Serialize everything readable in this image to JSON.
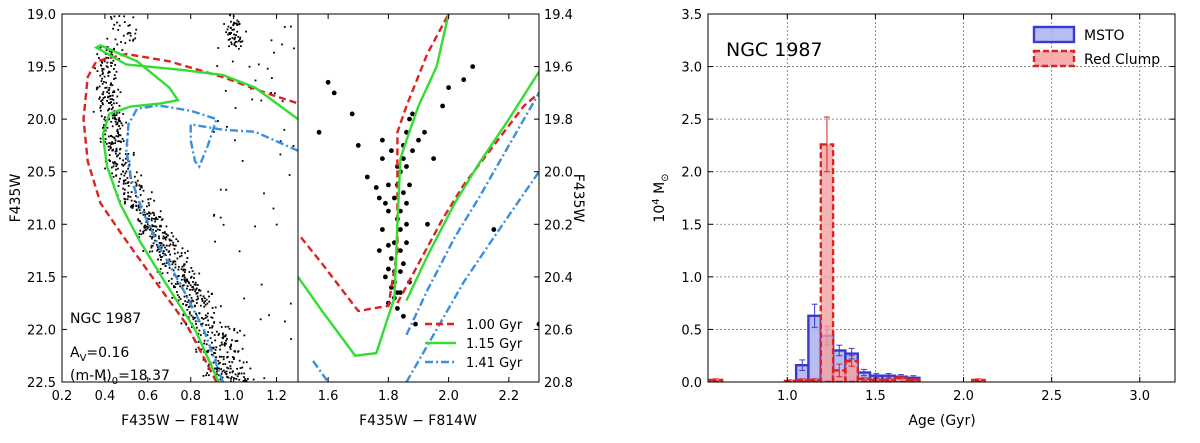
{
  "chart_data": [
    {
      "type": "scatter",
      "panel": "left CMD",
      "xlabel": "F435W − F814W",
      "ylabel": "F435W",
      "xlim": [
        0.2,
        1.3
      ],
      "ylim": [
        22.5,
        19.0
      ],
      "xticks": [
        0.2,
        0.4,
        0.6,
        0.8,
        1.0,
        1.2
      ],
      "xtick_labels": [
        "0.2",
        "0.4",
        "0.6",
        "0.8",
        "1.0",
        "1.2"
      ],
      "yticks": [
        19.0,
        19.5,
        20.0,
        20.5,
        21.0,
        21.5,
        22.0,
        22.5
      ],
      "ytick_labels": [
        "19.0",
        "19.5",
        "20.0",
        "20.5",
        "21.0",
        "21.5",
        "22.0",
        "22.5"
      ],
      "annotations": [
        "NGC 1987",
        "A",
        "V",
        "=0.16",
        "(m-M)",
        "0",
        "=18.37"
      ],
      "isochrones": [
        {
          "age": "1.00 Gyr",
          "color": "#dd2222",
          "style": "dashed",
          "points": [
            [
              0.92,
              22.5
            ],
            [
              0.78,
              21.95
            ],
            [
              0.62,
              21.5
            ],
            [
              0.48,
              21.1
            ],
            [
              0.38,
              20.8
            ],
            [
              0.32,
              20.4
            ],
            [
              0.3,
              20.0
            ],
            [
              0.32,
              19.6
            ],
            [
              0.36,
              19.45
            ],
            [
              0.5,
              19.38
            ],
            [
              0.7,
              19.45
            ],
            [
              0.95,
              19.6
            ],
            [
              1.15,
              19.75
            ],
            [
              1.3,
              19.85
            ]
          ]
        },
        {
          "age": "1.15 Gyr",
          "color": "#33dd33",
          "style": "solid",
          "points": [
            [
              0.93,
              22.5
            ],
            [
              0.82,
              22.0
            ],
            [
              0.68,
              21.55
            ],
            [
              0.56,
              21.15
            ],
            [
              0.47,
              20.8
            ],
            [
              0.41,
              20.45
            ],
            [
              0.39,
              20.15
            ],
            [
              0.42,
              19.95
            ],
            [
              0.52,
              19.88
            ],
            [
              0.66,
              19.85
            ],
            [
              0.74,
              19.82
            ],
            [
              0.7,
              19.7
            ],
            [
              0.55,
              19.45
            ],
            [
              0.38,
              19.3
            ],
            [
              0.36,
              19.32
            ],
            [
              0.5,
              19.48
            ],
            [
              0.75,
              19.53
            ],
            [
              0.95,
              19.58
            ],
            [
              1.1,
              19.7
            ],
            [
              1.3,
              20.0
            ]
          ]
        },
        {
          "age": "1.41 Gyr",
          "color": "#3b8fdf",
          "style": "dashdot",
          "points": [
            [
              0.95,
              22.5
            ],
            [
              0.86,
              22.0
            ],
            [
              0.76,
              21.6
            ],
            [
              0.65,
              21.2
            ],
            [
              0.57,
              20.85
            ],
            [
              0.52,
              20.55
            ],
            [
              0.5,
              20.3
            ],
            [
              0.51,
              20.05
            ],
            [
              0.55,
              19.9
            ],
            [
              0.65,
              19.87
            ],
            [
              0.8,
              19.92
            ],
            [
              0.92,
              20.0
            ],
            [
              0.88,
              20.25
            ],
            [
              0.84,
              20.45
            ],
            [
              0.82,
              20.4
            ],
            [
              0.8,
              20.2
            ],
            [
              0.8,
              20.05
            ],
            [
              0.95,
              20.1
            ],
            [
              1.1,
              20.12
            ],
            [
              1.3,
              20.3
            ]
          ]
        }
      ],
      "stars": "upper main sequence, turnoff and red clump of NGC 1987"
    },
    {
      "type": "scatter",
      "panel": "zoom CMD",
      "xlabel": "F435W − F814W",
      "ylabel": "F435W",
      "xlim": [
        1.5,
        2.3
      ],
      "ylim": [
        20.8,
        19.4
      ],
      "xticks": [
        1.6,
        1.8,
        2.0,
        2.2
      ],
      "xtick_labels": [
        "1.6",
        "1.8",
        "2.0",
        "2.2"
      ],
      "yticks": [
        19.4,
        19.6,
        19.8,
        20.0,
        20.2,
        20.4,
        20.6,
        20.8
      ],
      "ytick_labels": [
        "19.4",
        "19.6",
        "19.8",
        "20.0",
        "20.2",
        "20.4",
        "20.6",
        "20.8"
      ],
      "legend": [
        "1.00 Gyr",
        "1.15 Gyr",
        "1.41 Gyr"
      ],
      "isochrones": [
        {
          "age": "1.00 Gyr",
          "color": "#dd2222",
          "style": "dashed",
          "points": [
            [
              1.51,
              20.25
            ],
            [
              1.58,
              20.35
            ],
            [
              1.7,
              20.53
            ],
            [
              1.8,
              20.51
            ],
            [
              1.83,
              20.3
            ],
            [
              1.83,
              19.85
            ],
            [
              1.86,
              19.75
            ],
            [
              1.93,
              19.55
            ],
            [
              2.0,
              19.4
            ]
          ],
          "points2": [
            [
              1.83,
              20.5
            ],
            [
              1.9,
              20.35
            ],
            [
              1.98,
              20.18
            ],
            [
              2.05,
              20.05
            ],
            [
              2.15,
              19.9
            ],
            [
              2.25,
              19.75
            ],
            [
              2.3,
              19.7
            ]
          ]
        },
        {
          "age": "1.15 Gyr",
          "color": "#33dd33",
          "style": "solid",
          "points": [
            [
              1.5,
              20.4
            ],
            [
              1.58,
              20.53
            ],
            [
              1.69,
              20.7
            ],
            [
              1.76,
              20.69
            ],
            [
              1.82,
              20.48
            ],
            [
              1.83,
              20.2
            ],
            [
              1.84,
              19.95
            ],
            [
              1.86,
              19.88
            ],
            [
              1.9,
              19.75
            ],
            [
              1.96,
              19.6
            ],
            [
              2.0,
              19.4
            ]
          ],
          "points2": [
            [
              1.86,
              20.49
            ],
            [
              1.93,
              20.32
            ],
            [
              2.02,
              20.12
            ],
            [
              2.1,
              19.97
            ],
            [
              2.2,
              19.8
            ],
            [
              2.3,
              19.62
            ]
          ]
        },
        {
          "age": "1.41 Gyr",
          "color": "#3b8fdf",
          "style": "dashdot",
          "points": [
            [
              1.55,
              20.72
            ],
            [
              1.6,
              20.8
            ]
          ],
          "points2": [
            [
              1.86,
              20.62
            ],
            [
              1.93,
              20.45
            ],
            [
              2.02,
              20.25
            ],
            [
              2.1,
              20.1
            ],
            [
              2.2,
              19.9
            ],
            [
              2.3,
              19.7
            ]
          ],
          "points3": [
            [
              1.86,
              20.8
            ],
            [
              1.95,
              20.62
            ],
            [
              2.05,
              20.42
            ],
            [
              2.15,
              20.25
            ],
            [
              2.3,
              20.0
            ]
          ]
        }
      ],
      "stars": [
        [
          1.6,
          19.66
        ],
        [
          1.62,
          19.7
        ],
        [
          1.57,
          19.85
        ],
        [
          1.68,
          19.78
        ],
        [
          1.7,
          19.9
        ],
        [
          1.73,
          20.02
        ],
        [
          1.76,
          20.06
        ],
        [
          1.78,
          19.95
        ],
        [
          1.77,
          20.1
        ],
        [
          1.79,
          20.12
        ],
        [
          1.8,
          20.15
        ],
        [
          1.78,
          20.22
        ],
        [
          1.77,
          20.3
        ],
        [
          1.8,
          20.28
        ],
        [
          1.81,
          20.33
        ],
        [
          1.82,
          20.38
        ],
        [
          1.82,
          20.42
        ],
        [
          1.83,
          20.46
        ],
        [
          1.81,
          20.44
        ],
        [
          1.8,
          20.5
        ],
        [
          1.84,
          20.3
        ],
        [
          1.84,
          20.22
        ],
        [
          1.84,
          20.15
        ],
        [
          1.85,
          20.08
        ],
        [
          1.84,
          20.0
        ],
        [
          1.85,
          19.95
        ],
        [
          1.85,
          19.9
        ],
        [
          1.86,
          19.85
        ],
        [
          1.86,
          19.98
        ],
        [
          1.83,
          20.05
        ],
        [
          1.82,
          20.1
        ],
        [
          1.83,
          20.18
        ],
        [
          1.86,
          20.12
        ],
        [
          1.84,
          20.38
        ],
        [
          1.82,
          20.27
        ],
        [
          1.8,
          20.37
        ],
        [
          1.83,
          19.98
        ],
        [
          1.87,
          19.8
        ],
        [
          1.88,
          19.78
        ],
        [
          1.87,
          20.05
        ],
        [
          1.86,
          20.2
        ],
        [
          1.85,
          20.35
        ],
        [
          1.84,
          20.46
        ],
        [
          1.82,
          20.48
        ],
        [
          1.88,
          19.92
        ],
        [
          1.9,
          19.88
        ],
        [
          1.92,
          19.85
        ],
        [
          1.95,
          19.95
        ],
        [
          1.93,
          20.2
        ],
        [
          1.98,
          19.75
        ],
        [
          2.0,
          19.68
        ],
        [
          2.05,
          19.65
        ],
        [
          2.08,
          19.6
        ],
        [
          2.15,
          20.22
        ],
        [
          2.3,
          20.58
        ],
        [
          1.85,
          20.55
        ],
        [
          1.89,
          20.58
        ],
        [
          1.78,
          19.88
        ],
        [
          1.81,
          19.92
        ],
        [
          1.8,
          20.05
        ],
        [
          1.79,
          20.4
        ],
        [
          1.86,
          20.27
        ],
        [
          1.87,
          20.42
        ],
        [
          1.83,
          20.52
        ]
      ]
    },
    {
      "type": "bar",
      "panel": "age distribution",
      "xlabel": "Age (Gyr)",
      "ylabel": "10",
      "ylabel_sup": "4",
      "ylabel_unit": " M",
      "ylabel_sym": "⊙",
      "xlim": [
        0.55,
        3.2
      ],
      "ylim": [
        0,
        3.5
      ],
      "xticks": [
        1.0,
        1.5,
        2.0,
        2.5,
        3.0
      ],
      "xtick_labels": [
        "1.0",
        "1.5",
        "2.0",
        "2.5",
        "3.0"
      ],
      "yticks": [
        0.0,
        0.5,
        1.0,
        1.5,
        2.0,
        2.5,
        3.0,
        3.5
      ],
      "ytick_labels": [
        "0.0",
        "0.5",
        "1.0",
        "1.5",
        "2.0",
        "2.5",
        "3.0",
        "3.5"
      ],
      "grid": true,
      "legend_position": "top-right",
      "title": "NGC 1987",
      "bin_width": 0.07,
      "series": [
        {
          "name": "MSTO",
          "color": "#3a3acd",
          "fill": "#aab0ee",
          "style": "solid",
          "bins": [
            1.05,
            1.12,
            1.19,
            1.26,
            1.33,
            1.4,
            1.47,
            1.54,
            1.61,
            1.68
          ],
          "values": [
            0.16,
            0.63,
            0.44,
            0.3,
            0.27,
            0.09,
            0.06,
            0.06,
            0.05,
            0.04
          ],
          "errors": [
            0.05,
            0.11,
            0.09,
            0.05,
            0.05,
            0.03,
            0.02,
            0.02,
            0.02,
            0.02
          ]
        },
        {
          "name": "Red Clump",
          "color": "#dd2222",
          "fill": "#f4a0a0",
          "style": "dashed",
          "bins": [
            0.56,
            0.98,
            1.05,
            1.12,
            1.19,
            1.26,
            1.33,
            1.4,
            1.47,
            1.54,
            1.61,
            1.68,
            2.05
          ],
          "values": [
            0.02,
            0.01,
            0.02,
            0.02,
            2.26,
            0.11,
            0.2,
            0.03,
            0.02,
            0.02,
            0.04,
            0.02,
            0.02
          ],
          "errors": [
            0.01,
            0.01,
            0.01,
            0.01,
            0.26,
            0.06,
            0.05,
            0.01,
            0.01,
            0.01,
            0.01,
            0.01,
            0.01
          ]
        }
      ]
    }
  ]
}
